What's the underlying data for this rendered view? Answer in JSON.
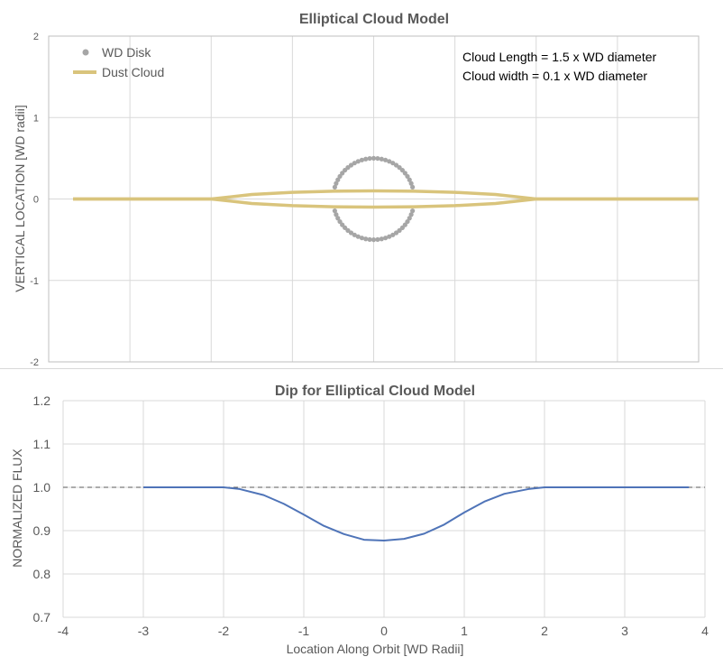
{
  "colors": {
    "wd_disk": "#a6a6a6",
    "dust_cloud": "#d9c47c",
    "flux_line": "#4f74b8",
    "reference_line": "#595959",
    "grid": "#d9d9d9"
  },
  "chart_data": [
    {
      "type": "scatter",
      "title": "Elliptical Cloud Model",
      "xlabel": "",
      "ylabel": "VERTICAL LOCATION [WD radii]",
      "xlim": [
        -4,
        4
      ],
      "ylim": [
        -2,
        2
      ],
      "grid": true,
      "x_tick_labels_shown": false,
      "y_ticks": [
        "2",
        "1",
        "0",
        "-1",
        "-2"
      ],
      "legend_position": "top-left",
      "legend": [
        "WD Disk",
        "Dust Cloud"
      ],
      "annotations": [
        "Cloud Length = 1.5 x WD diameter",
        "Cloud width = 0.1 x WD diameter"
      ],
      "series": [
        {
          "name": "WD Disk",
          "style": "points",
          "shape": "circle",
          "center": [
            0,
            0
          ],
          "radius": 0.5,
          "note": "points on circle, hidden where the cloud overlaps"
        },
        {
          "name": "Dust Cloud",
          "style": "line",
          "x": [
            -3.7,
            -2.0,
            -1.5,
            -1.0,
            -0.5,
            0.0,
            0.5,
            1.0,
            1.5,
            2.0,
            3.5,
            4.0
          ],
          "upper": [
            0.0,
            0.0,
            0.055,
            0.082,
            0.096,
            0.1,
            0.096,
            0.082,
            0.055,
            0.0,
            0.0,
            0.0
          ],
          "lower": [
            0.0,
            0.0,
            -0.055,
            -0.082,
            -0.096,
            -0.1,
            -0.096,
            -0.082,
            -0.055,
            0.0,
            0.0,
            0.0
          ]
        }
      ]
    },
    {
      "type": "line",
      "title": "Dip for Elliptical Cloud Model",
      "xlabel": "Location Along Orbit [WD Radii]",
      "ylabel": "NORMALIZED FLUX",
      "xlim": [
        -4,
        4
      ],
      "ylim": [
        0.7,
        1.2
      ],
      "grid": true,
      "x_ticks": [
        "-4",
        "-3",
        "-2",
        "-1",
        "0",
        "1",
        "2",
        "3",
        "4"
      ],
      "y_ticks": [
        "1.2",
        "1.1",
        "1.0",
        "0.9",
        "0.8",
        "0.7"
      ],
      "reference_line": {
        "y": 1.0,
        "x_range": [
          -4,
          4
        ],
        "style": "dashed"
      },
      "series": [
        {
          "name": "",
          "x": [
            -3.0,
            -2.0,
            -1.8,
            -1.5,
            -1.25,
            -1.0,
            -0.75,
            -0.5,
            -0.25,
            0.0,
            0.25,
            0.5,
            0.75,
            1.0,
            1.25,
            1.5,
            1.8,
            2.0,
            3.0,
            3.8
          ],
          "y": [
            1.0,
            1.0,
            0.996,
            0.982,
            0.962,
            0.937,
            0.911,
            0.892,
            0.879,
            0.877,
            0.881,
            0.893,
            0.914,
            0.942,
            0.967,
            0.985,
            0.996,
            1.0,
            1.0,
            1.0
          ]
        }
      ]
    }
  ]
}
